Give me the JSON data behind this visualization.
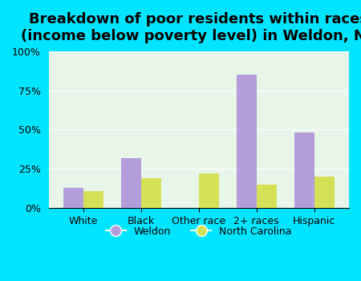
{
  "title": "Breakdown of poor residents within races\n(income below poverty level) in Weldon, NC",
  "categories": [
    "White",
    "Black",
    "Other race",
    "2+ races",
    "Hispanic"
  ],
  "weldon": [
    13,
    32,
    0,
    85,
    48
  ],
  "nc": [
    11,
    19,
    22,
    15,
    20
  ],
  "weldon_color": "#b39ddb",
  "nc_color": "#d4e157",
  "background_outer": "#00e5ff",
  "background_inner": "#e8f5e9",
  "ylim": [
    0,
    100
  ],
  "yticks": [
    0,
    25,
    50,
    75,
    100
  ],
  "ytick_labels": [
    "0%",
    "25%",
    "50%",
    "75%",
    "100%"
  ],
  "legend_weldon": "Weldon",
  "legend_nc": "North Carolina",
  "title_fontsize": 13,
  "bar_width": 0.35
}
